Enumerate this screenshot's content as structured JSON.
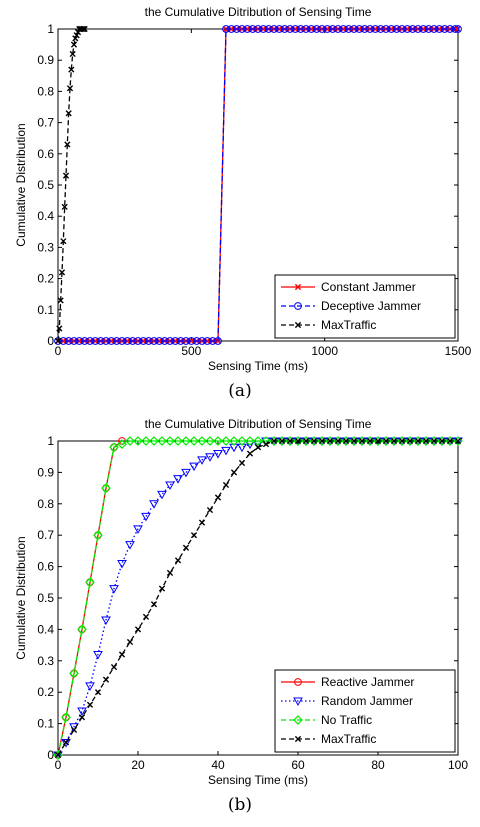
{
  "chart_data": [
    {
      "type": "line",
      "panel_label": "(a)",
      "title": "the Cumulative Ditribution of Sensing Time",
      "xlabel": "Sensing Time (ms)",
      "ylabel": "Cumulative Distribution",
      "xlim": [
        0,
        1500
      ],
      "ylim": [
        0,
        1
      ],
      "xticks": [
        0,
        500,
        1000,
        1500
      ],
      "yticks": [
        0,
        0.1,
        0.2,
        0.3,
        0.4,
        0.5,
        0.6,
        0.7,
        0.8,
        0.9,
        1
      ],
      "grid": false,
      "legend_position": "bottom-right",
      "series": [
        {
          "name": "Constant Jammer",
          "color": "#ff0000",
          "marker": "x",
          "line_style": "solid",
          "x": [
            0,
            20,
            40,
            60,
            80,
            100,
            120,
            140,
            160,
            180,
            200,
            220,
            240,
            260,
            280,
            300,
            320,
            340,
            360,
            380,
            400,
            420,
            440,
            460,
            480,
            500,
            520,
            540,
            560,
            580,
            600,
            630,
            650,
            670,
            690,
            710,
            730,
            750,
            770,
            790,
            810,
            830,
            850,
            870,
            890,
            910,
            930,
            950,
            970,
            990,
            1010,
            1030,
            1050,
            1070,
            1090,
            1110,
            1130,
            1150,
            1170,
            1190,
            1210,
            1230,
            1250,
            1270,
            1290,
            1310,
            1330,
            1350,
            1370,
            1390,
            1410,
            1430,
            1450,
            1470,
            1490,
            1500
          ],
          "y": [
            0,
            0,
            0,
            0,
            0,
            0,
            0,
            0,
            0,
            0,
            0,
            0,
            0,
            0,
            0,
            0,
            0,
            0,
            0,
            0,
            0,
            0,
            0,
            0,
            0,
            0,
            0,
            0,
            0,
            0,
            0,
            1,
            1,
            1,
            1,
            1,
            1,
            1,
            1,
            1,
            1,
            1,
            1,
            1,
            1,
            1,
            1,
            1,
            1,
            1,
            1,
            1,
            1,
            1,
            1,
            1,
            1,
            1,
            1,
            1,
            1,
            1,
            1,
            1,
            1,
            1,
            1,
            1,
            1,
            1,
            1,
            1,
            1,
            1,
            1,
            1
          ]
        },
        {
          "name": "Deceptive Jammer",
          "color": "#0000ff",
          "marker": "o",
          "line_style": "dashed",
          "x": [
            0,
            20,
            40,
            60,
            80,
            100,
            120,
            140,
            160,
            180,
            200,
            220,
            240,
            260,
            280,
            300,
            320,
            340,
            360,
            380,
            400,
            420,
            440,
            460,
            480,
            500,
            520,
            540,
            560,
            580,
            600,
            630,
            650,
            670,
            690,
            710,
            730,
            750,
            770,
            790,
            810,
            830,
            850,
            870,
            890,
            910,
            930,
            950,
            970,
            990,
            1010,
            1030,
            1050,
            1070,
            1090,
            1110,
            1130,
            1150,
            1170,
            1190,
            1210,
            1230,
            1250,
            1270,
            1290,
            1310,
            1330,
            1350,
            1370,
            1390,
            1410,
            1430,
            1450,
            1470,
            1490,
            1500
          ],
          "y": [
            0,
            0,
            0,
            0,
            0,
            0,
            0,
            0,
            0,
            0,
            0,
            0,
            0,
            0,
            0,
            0,
            0,
            0,
            0,
            0,
            0,
            0,
            0,
            0,
            0,
            0,
            0,
            0,
            0,
            0,
            0,
            1,
            1,
            1,
            1,
            1,
            1,
            1,
            1,
            1,
            1,
            1,
            1,
            1,
            1,
            1,
            1,
            1,
            1,
            1,
            1,
            1,
            1,
            1,
            1,
            1,
            1,
            1,
            1,
            1,
            1,
            1,
            1,
            1,
            1,
            1,
            1,
            1,
            1,
            1,
            1,
            1,
            1,
            1,
            1,
            1
          ]
        },
        {
          "name": "MaxTraffic",
          "color": "#000000",
          "marker": "x",
          "line_style": "dashed",
          "x": [
            0,
            5,
            10,
            15,
            20,
            25,
            30,
            35,
            40,
            45,
            50,
            55,
            60,
            65,
            70,
            75,
            80,
            85,
            90,
            95,
            100
          ],
          "y": [
            0,
            0.04,
            0.13,
            0.22,
            0.32,
            0.43,
            0.53,
            0.63,
            0.73,
            0.81,
            0.87,
            0.92,
            0.95,
            0.97,
            0.98,
            0.99,
            1,
            1,
            1,
            1,
            1
          ]
        }
      ]
    },
    {
      "type": "line",
      "panel_label": "(b)",
      "title": "the Cumulative Ditribution of Sensing Time",
      "xlabel": "Sensing Time (ms)",
      "ylabel": "Cumulative Distribution",
      "xlim": [
        0,
        100
      ],
      "ylim": [
        0,
        1
      ],
      "xticks": [
        0,
        20,
        40,
        60,
        80,
        100
      ],
      "yticks": [
        0,
        0.1,
        0.2,
        0.3,
        0.4,
        0.5,
        0.6,
        0.7,
        0.8,
        0.9,
        1
      ],
      "grid": false,
      "legend_position": "bottom-right",
      "series": [
        {
          "name": "Reactive Jammer",
          "color": "#ff0000",
          "marker": "o",
          "line_style": "solid",
          "x": [
            0,
            2,
            4,
            6,
            8,
            10,
            12,
            14,
            16
          ],
          "y": [
            0,
            0.12,
            0.26,
            0.4,
            0.55,
            0.7,
            0.85,
            0.98,
            1
          ]
        },
        {
          "name": "Random Jammer",
          "color": "#0000ff",
          "marker": "v",
          "line_style": "dotted",
          "x": [
            0,
            2,
            4,
            6,
            8,
            10,
            12,
            14,
            16,
            18,
            20,
            22,
            24,
            26,
            28,
            30,
            32,
            34,
            36,
            38,
            40,
            42,
            44,
            46,
            48,
            50,
            52,
            54,
            56,
            58,
            60,
            62,
            64,
            66,
            68,
            70,
            72,
            74,
            76,
            78,
            80,
            82,
            84,
            86,
            88,
            90,
            92,
            94,
            96,
            98,
            100
          ],
          "y": [
            0,
            0.04,
            0.09,
            0.14,
            0.22,
            0.32,
            0.43,
            0.53,
            0.61,
            0.67,
            0.72,
            0.76,
            0.8,
            0.83,
            0.86,
            0.88,
            0.9,
            0.92,
            0.94,
            0.95,
            0.96,
            0.97,
            0.98,
            0.98,
            0.99,
            0.99,
            1,
            1,
            1,
            1,
            1,
            1,
            1,
            1,
            1,
            1,
            1,
            1,
            1,
            1,
            1,
            1,
            1,
            1,
            1,
            1,
            1,
            1,
            1,
            1,
            1
          ]
        },
        {
          "name": "No Traffic",
          "color": "#00ee00",
          "marker": "D",
          "line_style": "dashed",
          "x": [
            0,
            2,
            4,
            6,
            8,
            10,
            12,
            14,
            16,
            18,
            20,
            22,
            24,
            26,
            28,
            30,
            32,
            34,
            36,
            38,
            40,
            42,
            44,
            46,
            48,
            50,
            52,
            54,
            56,
            58,
            60,
            62,
            64,
            66,
            68,
            70,
            72,
            74,
            76,
            78,
            80,
            82,
            84,
            86,
            88,
            90,
            92,
            94,
            96,
            98,
            100
          ],
          "y": [
            0,
            0.12,
            0.26,
            0.4,
            0.55,
            0.7,
            0.85,
            0.98,
            0.99,
            1,
            1,
            1,
            1,
            1,
            1,
            1,
            1,
            1,
            1,
            1,
            1,
            1,
            1,
            1,
            1,
            1,
            1,
            1,
            1,
            1,
            1,
            1,
            1,
            1,
            1,
            1,
            1,
            1,
            1,
            1,
            1,
            1,
            1,
            1,
            1,
            1,
            1,
            1,
            1,
            1,
            1
          ]
        },
        {
          "name": "MaxTraffic",
          "color": "#000000",
          "marker": "x",
          "line_style": "dashed",
          "x": [
            0,
            2,
            4,
            6,
            8,
            10,
            12,
            14,
            16,
            18,
            20,
            22,
            24,
            26,
            28,
            30,
            32,
            34,
            36,
            38,
            40,
            42,
            44,
            46,
            48,
            50,
            52,
            54,
            56,
            58,
            60,
            62,
            64,
            66,
            68,
            70,
            72,
            74,
            76,
            78,
            80,
            82,
            84,
            86,
            88,
            90,
            92,
            94,
            96,
            98,
            100
          ],
          "y": [
            0,
            0.04,
            0.08,
            0.12,
            0.16,
            0.2,
            0.24,
            0.28,
            0.32,
            0.36,
            0.4,
            0.44,
            0.48,
            0.53,
            0.58,
            0.62,
            0.66,
            0.7,
            0.74,
            0.78,
            0.82,
            0.86,
            0.9,
            0.93,
            0.96,
            0.98,
            0.99,
            1,
            1,
            1,
            1,
            1,
            1,
            1,
            1,
            1,
            1,
            1,
            1,
            1,
            1,
            1,
            1,
            1,
            1,
            1,
            1,
            1,
            1,
            1,
            1
          ]
        }
      ]
    }
  ]
}
